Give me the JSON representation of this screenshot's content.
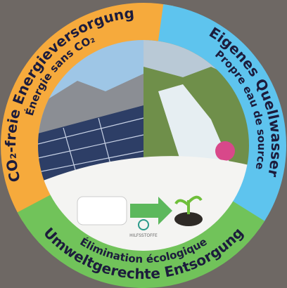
{
  "segments": [
    {
      "title": "CO₂-freie Energieversorgung",
      "subtitle": "Énergie sans CO₂"
    },
    {
      "title": "Eigenes Quellwasser",
      "subtitle": "Propre eau de source"
    },
    {
      "title": "Umweltgerechte Entsorgung",
      "subtitle": "Élimination écologique"
    }
  ],
  "center_label": "HILFSSTOFFE"
}
